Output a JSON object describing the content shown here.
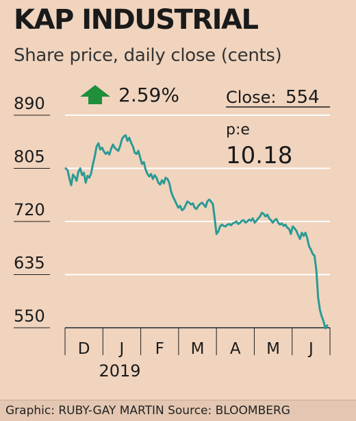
{
  "title": "KAP INDUSTRIAL",
  "subtitle": "Share price, daily close (cents)",
  "change": {
    "direction": "up",
    "value": "2.59%",
    "arrow_color": "#1f8f3a"
  },
  "close": {
    "label": "Close:",
    "value": "554"
  },
  "pe": {
    "label": "p:e",
    "value": "10.18"
  },
  "footer": "Graphic: RUBY-GAY MARTIN Source: BLOOMBERG",
  "colors": {
    "line": "#2a9a94",
    "background": "#f0d4be",
    "grid": "#ffffff"
  },
  "chart_data": {
    "type": "line",
    "title": "KAP INDUSTRIAL",
    "subtitle": "Share price, daily close (cents)",
    "y_ticks": [
      890,
      805,
      720,
      635,
      550
    ],
    "ylim": [
      550,
      890
    ],
    "x_tick_labels": [
      "D",
      "J",
      "F",
      "M",
      "A",
      "M",
      "J"
    ],
    "year_label": "2019",
    "grid": "horizontal",
    "series": [
      {
        "values": [
          805,
          802,
          789,
          778,
          795,
          791,
          785,
          800,
          805,
          794,
          798,
          782,
          793,
          790,
          797,
          812,
          824,
          840,
          845,
          835,
          838,
          832,
          828,
          831,
          827,
          836,
          843,
          838,
          835,
          833,
          841,
          852,
          856,
          858,
          849,
          854,
          846,
          840,
          830,
          828,
          833,
          822,
          812,
          815,
          803,
          796,
          792,
          796,
          788,
          794,
          790,
          782,
          779,
          786,
          781,
          790,
          788,
          782,
          768,
          760,
          754,
          748,
          742,
          745,
          738,
          740,
          746,
          752,
          750,
          747,
          749,
          742,
          740,
          745,
          748,
          750,
          747,
          743,
          752,
          755,
          752,
          748,
          726,
          700,
          704,
          712,
          715,
          713,
          712,
          715,
          716,
          714,
          717,
          718,
          720,
          716,
          718,
          721,
          722,
          718,
          720,
          723,
          721,
          725,
          718,
          721,
          725,
          728,
          734,
          732,
          728,
          731,
          725,
          722,
          718,
          722,
          724,
          718,
          715,
          717,
          713,
          715,
          710,
          708,
          700,
          712,
          709,
          705,
          698,
          692,
          702,
          697,
          702,
          693,
          680,
          675,
          668,
          665,
          642,
          598,
          578,
          568,
          560,
          549,
          554
        ]
      }
    ]
  }
}
